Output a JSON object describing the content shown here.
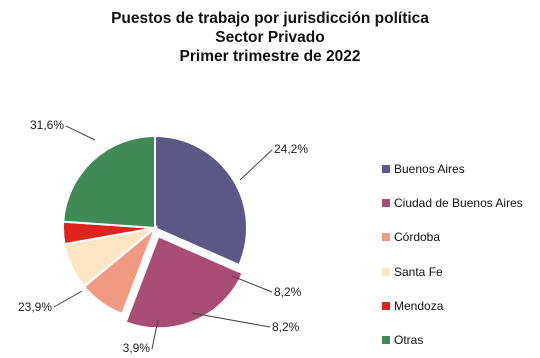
{
  "chart_data": {
    "type": "pie",
    "title": "Puestos de trabajo por jurisdicción política",
    "subtitle_lines": [
      "Sector Privado",
      "Primer trimestre  de 2022"
    ],
    "slices": [
      {
        "name": "Buenos Aires",
        "value": 31.6,
        "label": "31,6%",
        "color": "#5b5787"
      },
      {
        "name": "Ciudad de Buenos Aires",
        "value": 24.2,
        "label": "24,2%",
        "color": "#aa4d76"
      },
      {
        "name": "Córdoba",
        "value": 8.2,
        "label": "8,2%",
        "color": "#f09a82"
      },
      {
        "name": "Santa Fe",
        "value": 8.2,
        "label": "8,2%",
        "color": "#fde7c2"
      },
      {
        "name": "Mendoza",
        "value": 3.9,
        "label": "3,9%",
        "color": "#e1231d"
      },
      {
        "name": "Otras",
        "value": 23.9,
        "label": "23,9%",
        "color": "#3f8a57"
      }
    ],
    "legend_position": "right",
    "exploded_slice": "Ciudad de Buenos Aires"
  }
}
